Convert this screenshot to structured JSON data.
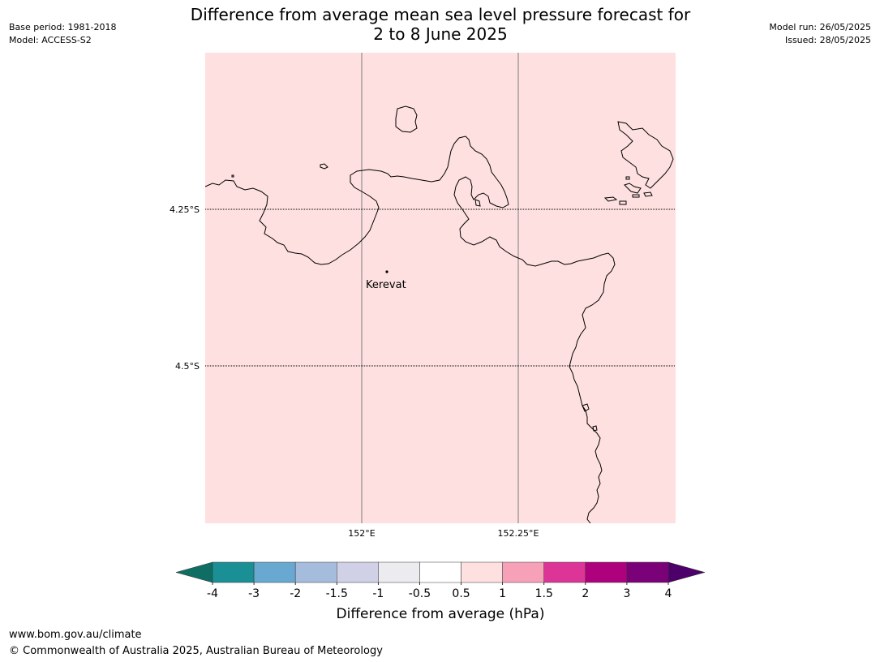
{
  "header": {
    "title_line1": "Difference from average mean sea level pressure forecast for",
    "title_line2": "2 to 8 June 2025",
    "base_period": "Base period: 1981-2018",
    "model": "Model: ACCESS-S2",
    "model_run": "Model run: 26/05/2025",
    "issued": "Issued: 28/05/2025"
  },
  "map": {
    "fill_color": "#fde0df",
    "lat_labels": [
      "4.25°S",
      "4.5°S"
    ],
    "lon_labels": [
      "152°E",
      "152.25°E"
    ],
    "place": {
      "name": "Kerevat"
    }
  },
  "colorbar": {
    "label": "Difference from average (hPa)",
    "ticks": [
      "-4",
      "-3",
      "-2",
      "-1.5",
      "-1",
      "-0.5",
      "0.5",
      "1",
      "1.5",
      "2",
      "3",
      "4"
    ],
    "colors": [
      "#1a9096",
      "#69a8d0",
      "#a6bcdd",
      "#d0d0e6",
      "#ececf0",
      "#ffffff",
      "#fde0df",
      "#f7a1b8",
      "#dd3497",
      "#ae017e",
      "#7a0177"
    ],
    "low_extend_color": "#0f6e64",
    "high_extend_color": "#4d006a"
  },
  "footer": {
    "url": "www.bom.gov.au/climate",
    "copyright": "© Commonwealth of Australia 2025, Australian Bureau of Meteorology"
  }
}
